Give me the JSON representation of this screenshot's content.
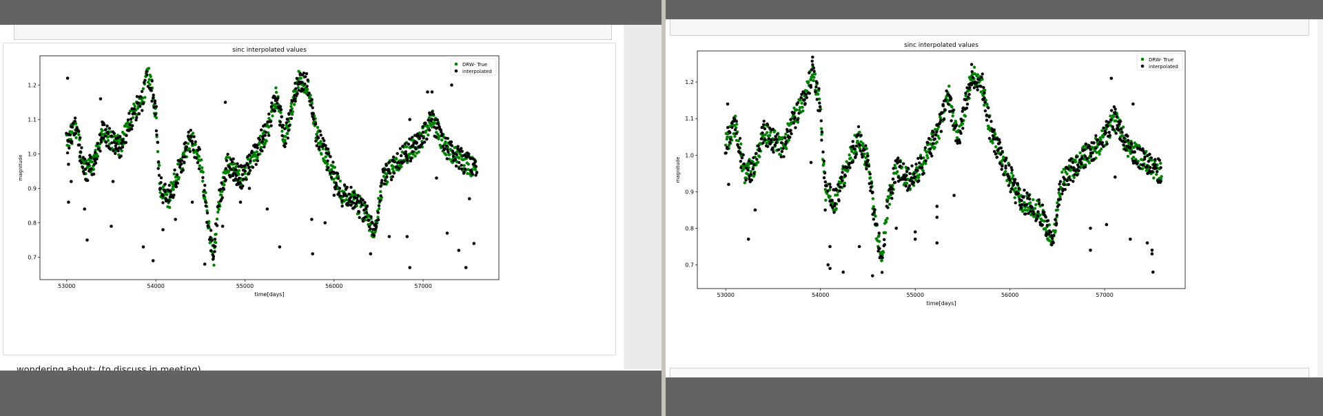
{
  "notebook": {
    "left_markdown_text": "wondering about: (to discuss in meeting)"
  },
  "chart_data": [
    {
      "type": "scatter",
      "title": "sinc interpolated values",
      "xlabel": "time[days]",
      "ylabel": "magnitude",
      "xlim": [
        52700,
        57850
      ],
      "ylim": [
        0.635,
        1.285
      ],
      "xticks": [
        53000,
        54000,
        55000,
        56000,
        57000
      ],
      "yticks": [
        0.7,
        0.8,
        0.9,
        1.0,
        1.1,
        1.2
      ],
      "grid": false,
      "legend_position": "top-right",
      "series": [
        {
          "name": "DRW- True",
          "color": "#008000"
        },
        {
          "name": "interpolated",
          "color": "#000000"
        }
      ],
      "curve_x_range": [
        53000,
        57600
      ],
      "curve_control_points": [
        [
          53000,
          1.03
        ],
        [
          53100,
          1.08
        ],
        [
          53200,
          0.95
        ],
        [
          53300,
          0.97
        ],
        [
          53400,
          1.06
        ],
        [
          53600,
          1.02
        ],
        [
          53700,
          1.09
        ],
        [
          53850,
          1.16
        ],
        [
          53920,
          1.24
        ],
        [
          54000,
          1.12
        ],
        [
          54050,
          0.9
        ],
        [
          54150,
          0.87
        ],
        [
          54250,
          0.95
        ],
        [
          54400,
          1.05
        ],
        [
          54500,
          0.98
        ],
        [
          54600,
          0.78
        ],
        [
          54650,
          0.7
        ],
        [
          54700,
          0.85
        ],
        [
          54800,
          0.97
        ],
        [
          54950,
          0.93
        ],
        [
          55100,
          0.99
        ],
        [
          55250,
          1.07
        ],
        [
          55350,
          1.17
        ],
        [
          55450,
          1.04
        ],
        [
          55600,
          1.22
        ],
        [
          55700,
          1.2
        ],
        [
          55800,
          1.06
        ],
        [
          55950,
          0.97
        ],
        [
          56100,
          0.88
        ],
        [
          56250,
          0.86
        ],
        [
          56350,
          0.83
        ],
        [
          56450,
          0.76
        ],
        [
          56550,
          0.93
        ],
        [
          56800,
          1.0
        ],
        [
          56950,
          1.03
        ],
        [
          57100,
          1.1
        ],
        [
          57250,
          1.02
        ],
        [
          57450,
          0.98
        ],
        [
          57600,
          0.95
        ]
      ],
      "interpolated_outliers": [
        [
          53010,
          1.22
        ],
        [
          53020,
          0.97
        ],
        [
          53020,
          0.86
        ],
        [
          53050,
          0.92
        ],
        [
          53150,
          0.98
        ],
        [
          53200,
          0.84
        ],
        [
          53230,
          0.75
        ],
        [
          53380,
          1.16
        ],
        [
          53500,
          0.79
        ],
        [
          53520,
          0.92
        ],
        [
          53860,
          0.73
        ],
        [
          53970,
          0.69
        ],
        [
          54080,
          0.78
        ],
        [
          54220,
          0.81
        ],
        [
          54410,
          0.86
        ],
        [
          54550,
          0.68
        ],
        [
          54750,
          0.79
        ],
        [
          54780,
          1.15
        ],
        [
          54950,
          0.86
        ],
        [
          55050,
          0.9
        ],
        [
          55250,
          0.84
        ],
        [
          55390,
          0.73
        ],
        [
          55750,
          0.81
        ],
        [
          55760,
          0.71
        ],
        [
          55900,
          0.8
        ],
        [
          56000,
          0.88
        ],
        [
          56410,
          0.71
        ],
        [
          56620,
          0.76
        ],
        [
          56820,
          0.76
        ],
        [
          56850,
          1.1
        ],
        [
          56850,
          0.67
        ],
        [
          57050,
          1.18
        ],
        [
          57100,
          1.18
        ],
        [
          57150,
          0.93
        ],
        [
          57270,
          0.77
        ],
        [
          57320,
          1.2
        ],
        [
          57400,
          0.72
        ],
        [
          57480,
          0.67
        ],
        [
          57520,
          0.87
        ],
        [
          57570,
          0.74
        ]
      ]
    },
    {
      "type": "scatter",
      "title": "sinc interpolated values",
      "xlabel": "time[days]",
      "ylabel": "magnitude",
      "xlim": [
        52700,
        57850
      ],
      "ylim": [
        0.635,
        1.285
      ],
      "xticks": [
        53000,
        54000,
        55000,
        56000,
        57000
      ],
      "yticks": [
        0.7,
        0.8,
        0.9,
        1.0,
        1.1,
        1.2
      ],
      "grid": false,
      "legend_position": "top-right",
      "series": [
        {
          "name": "DRW- True",
          "color": "#008000"
        },
        {
          "name": "interpolated",
          "color": "#000000"
        }
      ],
      "curve_x_range": [
        53000,
        57600
      ],
      "curve_control_points": [
        [
          53000,
          1.03
        ],
        [
          53100,
          1.08
        ],
        [
          53200,
          0.95
        ],
        [
          53300,
          0.97
        ],
        [
          53400,
          1.06
        ],
        [
          53600,
          1.02
        ],
        [
          53700,
          1.09
        ],
        [
          53850,
          1.16
        ],
        [
          53920,
          1.24
        ],
        [
          54000,
          1.12
        ],
        [
          54050,
          0.9
        ],
        [
          54150,
          0.87
        ],
        [
          54250,
          0.95
        ],
        [
          54400,
          1.05
        ],
        [
          54500,
          0.98
        ],
        [
          54600,
          0.78
        ],
        [
          54650,
          0.7
        ],
        [
          54700,
          0.85
        ],
        [
          54800,
          0.97
        ],
        [
          54950,
          0.93
        ],
        [
          55100,
          0.99
        ],
        [
          55250,
          1.07
        ],
        [
          55350,
          1.17
        ],
        [
          55450,
          1.04
        ],
        [
          55600,
          1.22
        ],
        [
          55700,
          1.2
        ],
        [
          55800,
          1.06
        ],
        [
          55950,
          0.97
        ],
        [
          56100,
          0.88
        ],
        [
          56250,
          0.86
        ],
        [
          56350,
          0.83
        ],
        [
          56450,
          0.76
        ],
        [
          56550,
          0.93
        ],
        [
          56800,
          1.0
        ],
        [
          56950,
          1.03
        ],
        [
          57100,
          1.1
        ],
        [
          57250,
          1.02
        ],
        [
          57450,
          0.98
        ],
        [
          57600,
          0.95
        ]
      ],
      "interpolated_outliers": [
        [
          53020,
          1.14
        ],
        [
          53030,
          0.92
        ],
        [
          53240,
          0.77
        ],
        [
          53310,
          0.85
        ],
        [
          53900,
          0.98
        ],
        [
          54050,
          0.85
        ],
        [
          54080,
          0.7
        ],
        [
          54100,
          0.69
        ],
        [
          54100,
          0.75
        ],
        [
          54240,
          0.68
        ],
        [
          54410,
          0.75
        ],
        [
          54550,
          0.67
        ],
        [
          54800,
          0.8
        ],
        [
          55000,
          0.79
        ],
        [
          55000,
          0.77
        ],
        [
          55230,
          0.86
        ],
        [
          55230,
          0.83
        ],
        [
          55230,
          0.76
        ],
        [
          55410,
          0.89
        ],
        [
          56850,
          0.74
        ],
        [
          56850,
          0.8
        ],
        [
          57020,
          0.81
        ],
        [
          57070,
          1.21
        ],
        [
          57110,
          0.94
        ],
        [
          57270,
          0.77
        ],
        [
          57300,
          1.14
        ],
        [
          57450,
          0.76
        ],
        [
          57500,
          0.74
        ],
        [
          57500,
          0.73
        ],
        [
          57510,
          0.68
        ]
      ]
    }
  ]
}
